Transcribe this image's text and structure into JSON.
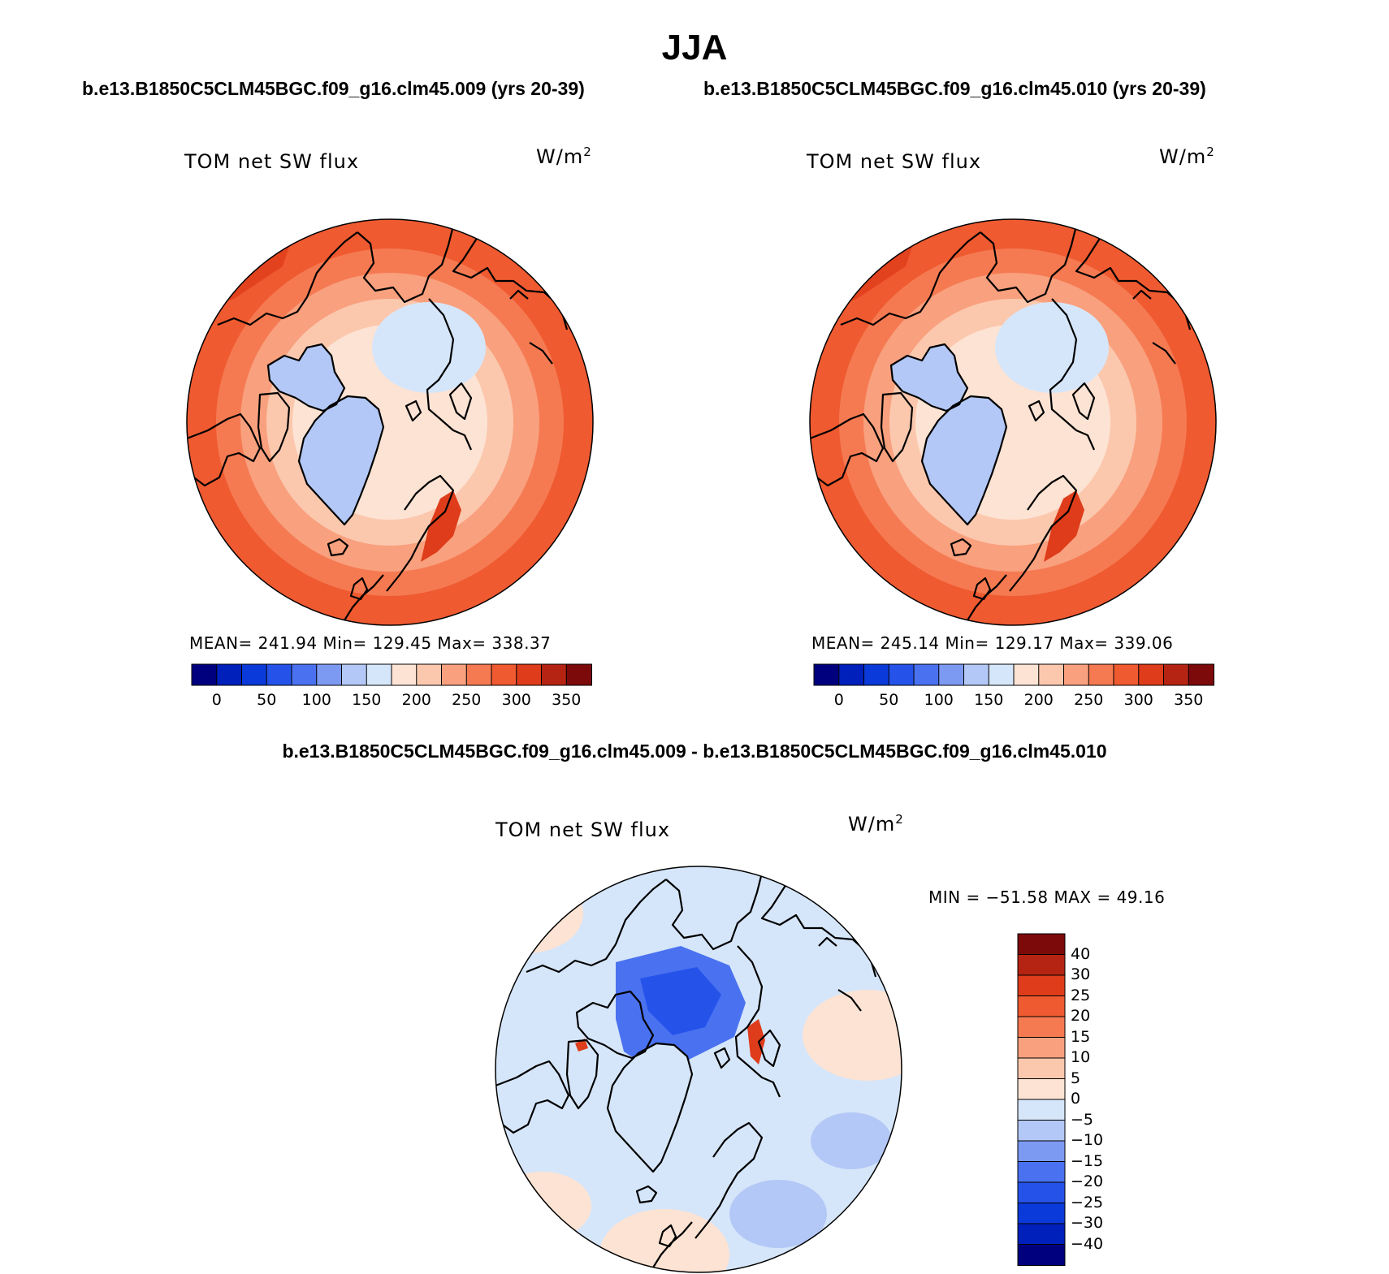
{
  "season": "JJA",
  "panels": [
    {
      "case": "b.e13.B1850C5CLM45BGC.f09_g16.clm45.009 (yrs 20-39)",
      "variable": "TOM net SW flux",
      "units": "W/m",
      "units_exp": "2",
      "stats": "MEAN= 241.94   Min= 129.45   Max= 338.37",
      "chart_data": {
        "type": "heatmap",
        "projection": "north polar stereographic",
        "mean": 241.94,
        "min": 129.45,
        "max": 338.37
      }
    },
    {
      "case": "b.e13.B1850C5CLM45BGC.f09_g16.clm45.010 (yrs 20-39)",
      "variable": "TOM net SW flux",
      "units": "W/m",
      "units_exp": "2",
      "stats": "MEAN= 245.14   Min= 129.17   Max= 339.06",
      "chart_data": {
        "type": "heatmap",
        "projection": "north polar stereographic",
        "mean": 245.14,
        "min": 129.17,
        "max": 339.06
      }
    }
  ],
  "abs_colorbar": {
    "colors": [
      "#00007f",
      "#0020bb",
      "#0a3ad9",
      "#2553ea",
      "#4a72f0",
      "#7d9af3",
      "#b3c8f6",
      "#d6e6fa",
      "#fde3d3",
      "#fbc8ae",
      "#f9a07e",
      "#f57a52",
      "#ef5a30",
      "#de3c1a",
      "#b52412",
      "#7c0a0a"
    ],
    "ticks": [
      "0",
      "50",
      "100",
      "150",
      "200",
      "250",
      "300",
      "350"
    ]
  },
  "diff": {
    "title": "b.e13.B1850C5CLM45BGC.f09_g16.clm45.009 - b.e13.B1850C5CLM45BGC.f09_g16.clm45.010",
    "variable": "TOM net SW flux",
    "units": "W/m",
    "units_exp": "2",
    "minmax": "MIN = −51.58 MAX =   49.16",
    "chart_data": {
      "type": "heatmap",
      "projection": "north polar stereographic",
      "min": -51.58,
      "max": 49.16
    },
    "colorbar": {
      "colors": [
        "#7c0a0a",
        "#b52412",
        "#de3c1a",
        "#ef5a30",
        "#f57a52",
        "#f9a07e",
        "#fbc8ae",
        "#fde3d3",
        "#d6e6fa",
        "#b3c8f6",
        "#7d9af3",
        "#4a72f0",
        "#2553ea",
        "#0a3ad9",
        "#0020bb",
        "#00007f"
      ],
      "ticks": [
        "40",
        "30",
        "25",
        "20",
        "15",
        "10",
        "5",
        "0",
        "−5",
        "−10",
        "−15",
        "−20",
        "−25",
        "−30",
        "−40"
      ]
    }
  }
}
